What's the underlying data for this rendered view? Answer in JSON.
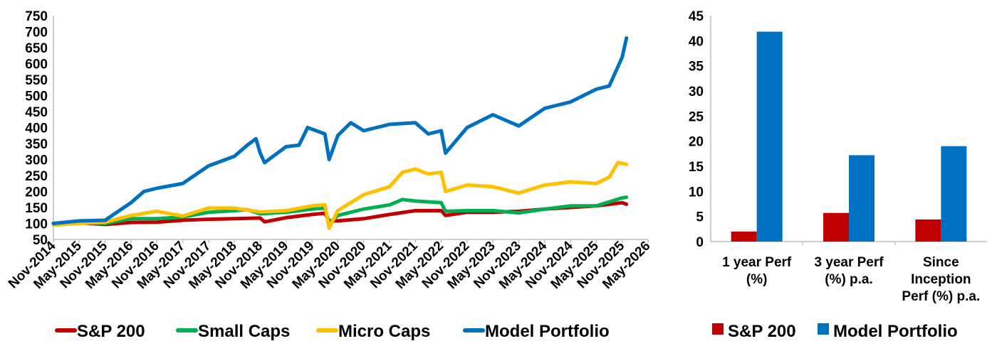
{
  "chart_data": [
    {
      "type": "line",
      "title": "",
      "xlabel": "",
      "ylabel": "",
      "ylim": [
        50,
        750
      ],
      "yticks": [
        50,
        100,
        150,
        200,
        250,
        300,
        350,
        400,
        450,
        500,
        550,
        600,
        650,
        700,
        750
      ],
      "xlim": [
        "2014-11",
        "2026-05"
      ],
      "xticks": [
        "Nov-2014",
        "May-2015",
        "Nov-2015",
        "May-2016",
        "Nov-2016",
        "May-2017",
        "Nov-2017",
        "May-2018",
        "Nov-2018",
        "May-2019",
        "Nov-2019",
        "May-2020",
        "Nov-2020",
        "May-2021",
        "Nov-2021",
        "May-2022",
        "Nov-2022",
        "May-2023",
        "Nov-2023",
        "May-2024",
        "Nov-2024",
        "May-2025",
        "Nov-2025",
        "May-2026"
      ],
      "grid": false,
      "legend_position": "bottom",
      "series": [
        {
          "name": "S&P 200",
          "color": "#c00000",
          "points": [
            [
              "2014-11",
              100
            ],
            [
              "2015-05",
              102
            ],
            [
              "2015-11",
              97
            ],
            [
              "2016-05",
              103
            ],
            [
              "2016-11",
              104
            ],
            [
              "2017-05",
              110
            ],
            [
              "2017-11",
              113
            ],
            [
              "2018-05",
              115
            ],
            [
              "2018-11",
              117
            ],
            [
              "2018-12",
              105
            ],
            [
              "2019-05",
              118
            ],
            [
              "2019-11",
              128
            ],
            [
              "2020-02",
              132
            ],
            [
              "2020-03",
              108
            ],
            [
              "2020-05",
              108
            ],
            [
              "2020-11",
              115
            ],
            [
              "2021-05",
              128
            ],
            [
              "2021-11",
              140
            ],
            [
              "2022-05",
              140
            ],
            [
              "2022-06",
              125
            ],
            [
              "2022-11",
              135
            ],
            [
              "2023-05",
              135
            ],
            [
              "2023-11",
              138
            ],
            [
              "2024-05",
              145
            ],
            [
              "2024-11",
              150
            ],
            [
              "2025-05",
              155
            ],
            [
              "2025-11",
              165
            ],
            [
              "2025-12",
              160
            ]
          ]
        },
        {
          "name": "Small Caps",
          "color": "#00b050",
          "points": [
            [
              "2014-11",
              100
            ],
            [
              "2015-05",
              103
            ],
            [
              "2015-11",
              100
            ],
            [
              "2016-05",
              115
            ],
            [
              "2016-11",
              115
            ],
            [
              "2017-05",
              120
            ],
            [
              "2017-11",
              135
            ],
            [
              "2018-05",
              140
            ],
            [
              "2018-08",
              143
            ],
            [
              "2018-11",
              130
            ],
            [
              "2019-05",
              135
            ],
            [
              "2019-11",
              145
            ],
            [
              "2020-02",
              148
            ],
            [
              "2020-03",
              100
            ],
            [
              "2020-05",
              125
            ],
            [
              "2020-11",
              145
            ],
            [
              "2021-05",
              158
            ],
            [
              "2021-08",
              175
            ],
            [
              "2021-11",
              170
            ],
            [
              "2022-05",
              165
            ],
            [
              "2022-06",
              138
            ],
            [
              "2022-11",
              140
            ],
            [
              "2023-05",
              140
            ],
            [
              "2023-11",
              133
            ],
            [
              "2024-05",
              145
            ],
            [
              "2024-11",
              155
            ],
            [
              "2025-05",
              155
            ],
            [
              "2025-11",
              180
            ],
            [
              "2025-12",
              182
            ]
          ]
        },
        {
          "name": "Micro Caps",
          "color": "#ffc000",
          "points": [
            [
              "2014-11",
              95
            ],
            [
              "2015-05",
              100
            ],
            [
              "2015-11",
              104
            ],
            [
              "2016-05",
              125
            ],
            [
              "2016-11",
              138
            ],
            [
              "2017-05",
              123
            ],
            [
              "2017-11",
              148
            ],
            [
              "2018-05",
              148
            ],
            [
              "2018-11",
              136
            ],
            [
              "2019-05",
              140
            ],
            [
              "2019-11",
              155
            ],
            [
              "2020-02",
              158
            ],
            [
              "2020-03",
              85
            ],
            [
              "2020-05",
              140
            ],
            [
              "2020-11",
              190
            ],
            [
              "2021-05",
              215
            ],
            [
              "2021-08",
              260
            ],
            [
              "2021-11",
              270
            ],
            [
              "2022-02",
              255
            ],
            [
              "2022-05",
              260
            ],
            [
              "2022-06",
              200
            ],
            [
              "2022-11",
              220
            ],
            [
              "2023-05",
              215
            ],
            [
              "2023-11",
              195
            ],
            [
              "2024-05",
              220
            ],
            [
              "2024-11",
              230
            ],
            [
              "2025-05",
              225
            ],
            [
              "2025-08",
              245
            ],
            [
              "2025-10",
              290
            ],
            [
              "2025-12",
              285
            ]
          ]
        },
        {
          "name": "Model Portfolio",
          "color": "#0070c0",
          "points": [
            [
              "2014-11",
              100
            ],
            [
              "2015-05",
              108
            ],
            [
              "2015-11",
              110
            ],
            [
              "2016-05",
              165
            ],
            [
              "2016-08",
              200
            ],
            [
              "2016-11",
              210
            ],
            [
              "2017-05",
              225
            ],
            [
              "2017-11",
              280
            ],
            [
              "2018-05",
              310
            ],
            [
              "2018-08",
              345
            ],
            [
              "2018-10",
              365
            ],
            [
              "2018-11",
              320
            ],
            [
              "2018-12",
              290
            ],
            [
              "2019-05",
              340
            ],
            [
              "2019-08",
              345
            ],
            [
              "2019-10",
              400
            ],
            [
              "2019-11",
              395
            ],
            [
              "2020-02",
              380
            ],
            [
              "2020-03",
              300
            ],
            [
              "2020-05",
              375
            ],
            [
              "2020-08",
              415
            ],
            [
              "2020-11",
              390
            ],
            [
              "2021-05",
              410
            ],
            [
              "2021-11",
              415
            ],
            [
              "2022-02",
              380
            ],
            [
              "2022-05",
              390
            ],
            [
              "2022-06",
              320
            ],
            [
              "2022-11",
              400
            ],
            [
              "2023-05",
              440
            ],
            [
              "2023-11",
              405
            ],
            [
              "2024-05",
              460
            ],
            [
              "2024-11",
              480
            ],
            [
              "2025-05",
              520
            ],
            [
              "2025-08",
              530
            ],
            [
              "2025-11",
              620
            ],
            [
              "2025-12",
              680
            ]
          ]
        }
      ]
    },
    {
      "type": "bar",
      "title": "",
      "xlabel": "",
      "ylabel": "",
      "ylim": [
        0,
        45
      ],
      "yticks": [
        0,
        5,
        10,
        15,
        20,
        25,
        30,
        35,
        40,
        45
      ],
      "grid": false,
      "legend_position": "bottom",
      "categories": [
        [
          "1 year Perf",
          "(%)"
        ],
        [
          "3 year Perf",
          "(%) p.a."
        ],
        [
          "Since",
          "Inception",
          "Perf (%) p.a."
        ]
      ],
      "series": [
        {
          "name": "S&P 200",
          "color": "#c00000",
          "values": [
            2.0,
            5.7,
            4.4
          ]
        },
        {
          "name": "Model Portfolio",
          "color": "#0070c0",
          "values": [
            41.8,
            17.2,
            19.0
          ]
        }
      ]
    }
  ]
}
